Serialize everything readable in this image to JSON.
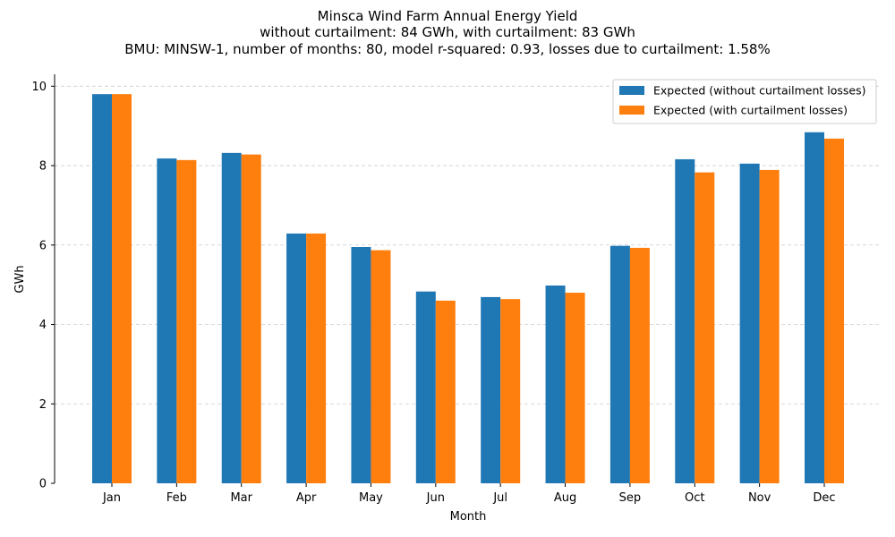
{
  "chart_data": {
    "type": "bar",
    "title_lines": [
      "Minsca Wind Farm Annual Energy Yield",
      "without curtailment: 84 GWh, with curtailment: 83 GWh",
      "BMU: MINSW-1, number of months: 80, model r-squared: 0.93, losses due to curtailment: 1.58%"
    ],
    "xlabel": "Month",
    "ylabel": "GWh",
    "ylim": [
      0,
      10.3
    ],
    "yticks": [
      "0",
      "2",
      "4",
      "6",
      "8",
      "10"
    ],
    "grid": "horizontal dashed",
    "legend_position": "top-right",
    "categories": [
      "Jan",
      "Feb",
      "Mar",
      "Apr",
      "May",
      "Jun",
      "Jul",
      "Aug",
      "Sep",
      "Oct",
      "Nov",
      "Dec"
    ],
    "series": [
      {
        "name": "Expected (without curtailment losses)",
        "color": "#1f77b4",
        "values": [
          9.8,
          8.18,
          8.32,
          6.29,
          5.95,
          4.83,
          4.69,
          4.98,
          5.98,
          8.16,
          8.05,
          8.84
        ]
      },
      {
        "name": "Expected (with curtailment losses)",
        "color": "#ff7f0e",
        "values": [
          9.8,
          8.14,
          8.28,
          6.29,
          5.87,
          4.6,
          4.64,
          4.8,
          5.93,
          7.83,
          7.89,
          8.68
        ]
      }
    ]
  }
}
